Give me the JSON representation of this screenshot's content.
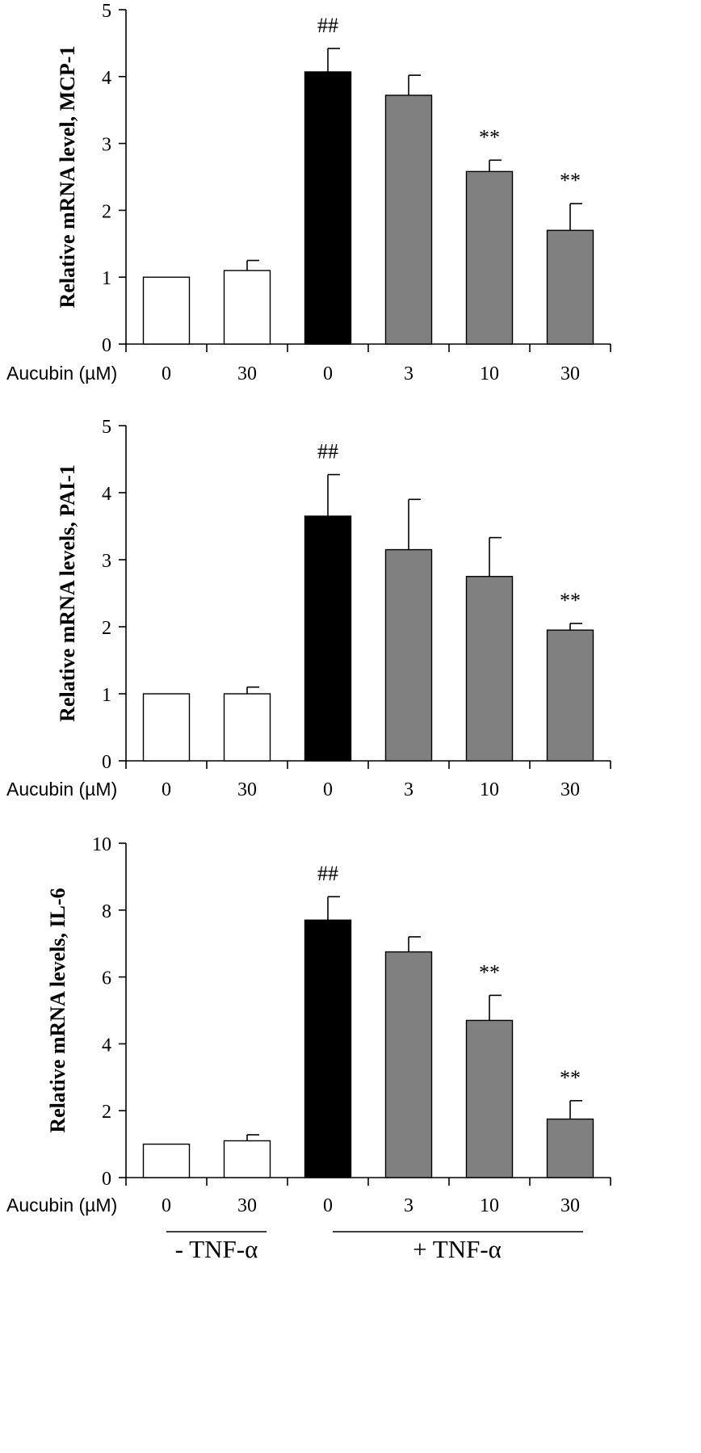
{
  "x_axis_title": "Aucubin (µM)",
  "group_labels": {
    "minus": "- TNF-α",
    "plus": "+ TNF-α"
  },
  "colors": {
    "control": "#ffffff",
    "tnf_only": "#000000",
    "treated": "#808080",
    "axis": "#000000"
  },
  "chart_data": [
    {
      "type": "bar",
      "ylabel": "Relative mRNA level, MCP-1",
      "ylim": [
        0,
        5
      ],
      "yticks": [
        0,
        1,
        2,
        3,
        4,
        5
      ],
      "categories": [
        "0",
        "30",
        "0",
        "3",
        "10",
        "30"
      ],
      "values": [
        1.0,
        1.1,
        4.07,
        3.72,
        2.58,
        1.7
      ],
      "errors": [
        0,
        0.15,
        0.35,
        0.3,
        0.17,
        0.4
      ],
      "annotations": [
        "",
        "",
        "##",
        "",
        "**",
        "**"
      ]
    },
    {
      "type": "bar",
      "ylabel": "Relative mRNA levels, PAI-1",
      "ylim": [
        0,
        5
      ],
      "yticks": [
        0,
        1,
        2,
        3,
        4,
        5
      ],
      "categories": [
        "0",
        "30",
        "0",
        "3",
        "10",
        "30"
      ],
      "values": [
        1.0,
        1.0,
        3.65,
        3.15,
        2.75,
        1.95
      ],
      "errors": [
        0,
        0.1,
        0.62,
        0.75,
        0.58,
        0.1
      ],
      "annotations": [
        "",
        "",
        "##",
        "",
        "",
        "**"
      ]
    },
    {
      "type": "bar",
      "ylabel": "Relative mRNA levels, IL-6",
      "ylim": [
        0,
        10
      ],
      "yticks": [
        0,
        2,
        4,
        6,
        8,
        10
      ],
      "categories": [
        "0",
        "30",
        "0",
        "3",
        "10",
        "30"
      ],
      "values": [
        1.0,
        1.1,
        7.7,
        6.75,
        4.7,
        1.75
      ],
      "errors": [
        0,
        0.18,
        0.7,
        0.45,
        0.75,
        0.55
      ],
      "annotations": [
        "",
        "",
        "##",
        "",
        "**",
        "**"
      ]
    }
  ]
}
